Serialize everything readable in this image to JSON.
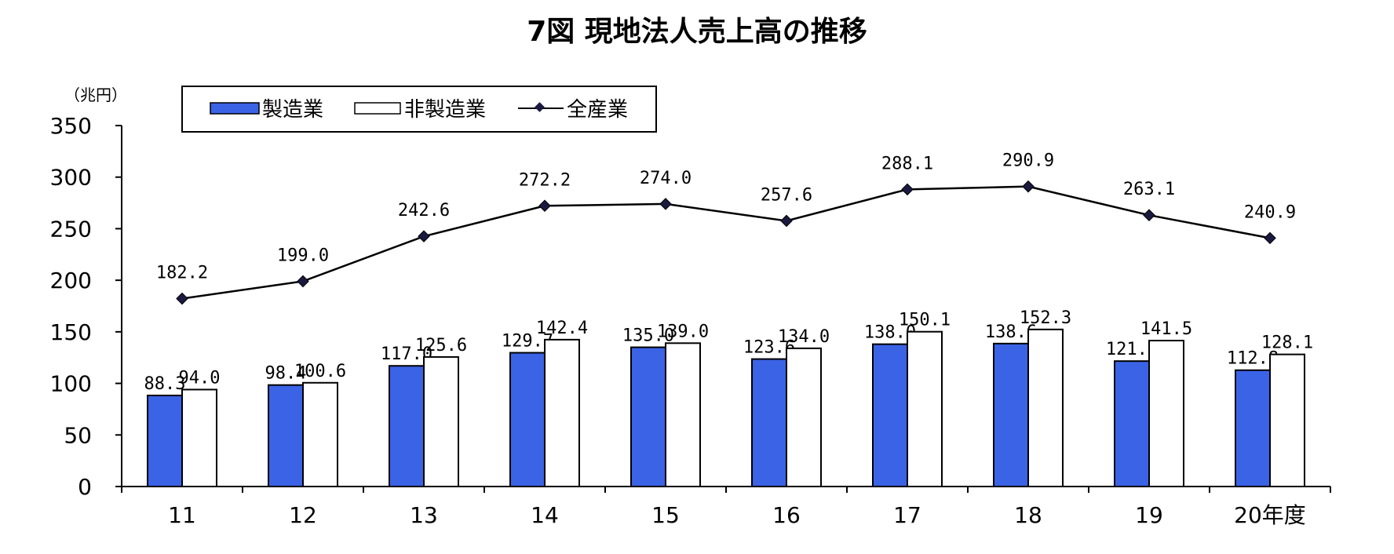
{
  "chart_data": {
    "type": "bar",
    "title": "7図 現地法人売上高の推移",
    "ylabel": "（兆円）",
    "categories": [
      "11",
      "12",
      "13",
      "14",
      "15",
      "16",
      "17",
      "18",
      "19",
      "20年度"
    ],
    "ylim": [
      0,
      350
    ],
    "yticks": [
      0,
      50,
      100,
      150,
      200,
      250,
      300,
      350
    ],
    "grid": false,
    "legend": "top-left",
    "series": [
      {
        "name": "製造業",
        "kind": "bar",
        "color": "#3b63e6",
        "values": [
          88.3,
          98.4,
          117.0,
          129.7,
          135.0,
          123.6,
          138.0,
          138.6,
          121.6,
          112.8
        ],
        "labels": [
          "88.3",
          "98.4",
          "117.0",
          "129.7",
          "135.0",
          "123.6",
          "138.0",
          "138.6",
          "121.6",
          "112.8"
        ]
      },
      {
        "name": "非製造業",
        "kind": "bar",
        "color": "#ffffff",
        "values": [
          94.0,
          100.6,
          125.6,
          142.4,
          139.0,
          134.0,
          150.1,
          152.3,
          141.5,
          128.1
        ],
        "labels": [
          "94.0",
          "100.6",
          "125.6",
          "142.4",
          "139.0",
          "134.0",
          "150.1",
          "152.3",
          "141.5",
          "128.1"
        ]
      },
      {
        "name": "全産業",
        "kind": "line",
        "color": "#1a1a40",
        "values": [
          182.2,
          199.0,
          242.6,
          272.2,
          274.0,
          257.6,
          288.1,
          290.9,
          263.1,
          240.9
        ],
        "labels": [
          "182.2",
          "199.0",
          "242.6",
          "272.2",
          "274.0",
          "257.6",
          "288.1",
          "290.9",
          "263.1",
          "240.9"
        ]
      }
    ]
  }
}
